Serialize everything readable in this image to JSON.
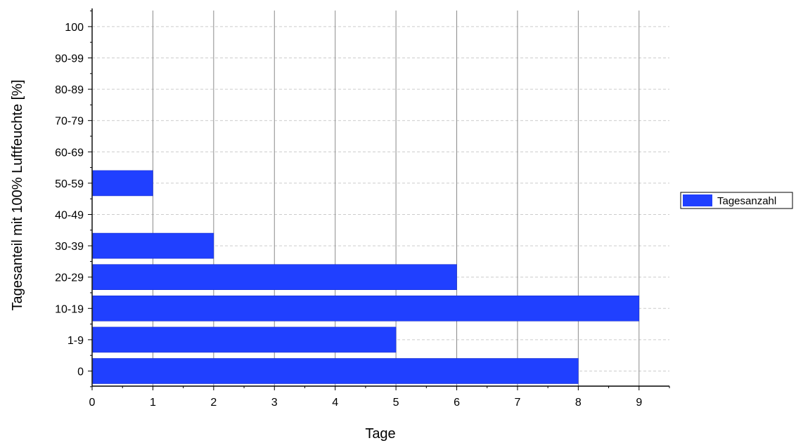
{
  "chart_data": {
    "type": "bar",
    "orientation": "horizontal",
    "title": "",
    "xlabel": "Tage",
    "ylabel": "Tagesanteil mit 100% Luftfeuchte [%]",
    "categories": [
      "0",
      "1-9",
      "10-19",
      "20-29",
      "30-39",
      "40-49",
      "50-59",
      "60-69",
      "70-79",
      "80-89",
      "90-99",
      "100"
    ],
    "series": [
      {
        "name": "Tagesanzahl",
        "values": [
          8,
          5,
          9,
          6,
          2,
          0,
          1,
          0,
          0,
          0,
          0,
          0
        ],
        "color": "#2040ff"
      }
    ],
    "xlim": [
      0,
      9.5
    ],
    "xticks": [
      "0",
      "1",
      "2",
      "3",
      "4",
      "5",
      "6",
      "7",
      "8",
      "9"
    ],
    "grid": {
      "x_major": true,
      "y_dashed": true
    },
    "legend_position": "right"
  },
  "colors": {
    "bar": "#2040ff",
    "grid_major": "#8a8a8a",
    "grid_minor": "#cccccc"
  }
}
